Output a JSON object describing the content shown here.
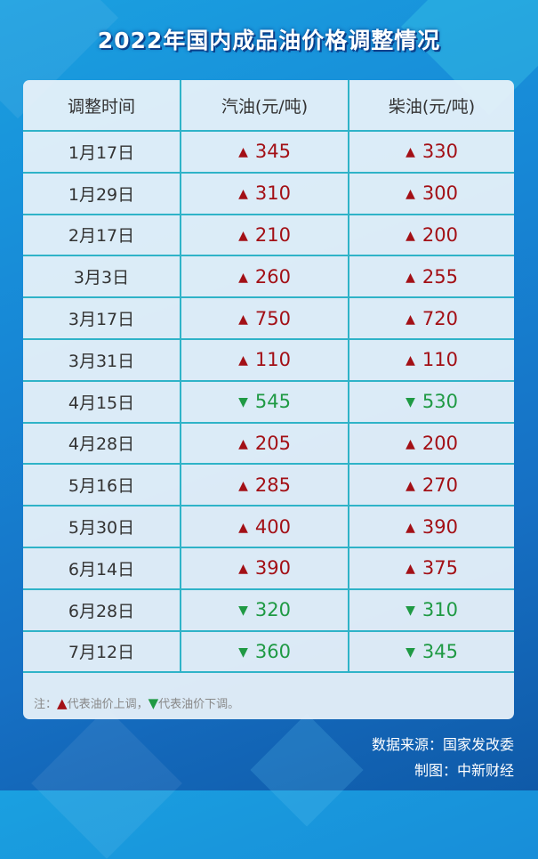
{
  "title": "2022年国内成品油价格调整情况",
  "table": {
    "headers": [
      "调整时间",
      "汽油(元/吨)",
      "柴油(元/吨)"
    ],
    "rows": [
      {
        "date": "1月17日",
        "gas_dir": "up",
        "gas": "345",
        "diesel_dir": "up",
        "diesel": "330"
      },
      {
        "date": "1月29日",
        "gas_dir": "up",
        "gas": "310",
        "diesel_dir": "up",
        "diesel": "300"
      },
      {
        "date": "2月17日",
        "gas_dir": "up",
        "gas": "210",
        "diesel_dir": "up",
        "diesel": "200"
      },
      {
        "date": "3月3日",
        "gas_dir": "up",
        "gas": "260",
        "diesel_dir": "up",
        "diesel": "255"
      },
      {
        "date": "3月17日",
        "gas_dir": "up",
        "gas": "750",
        "diesel_dir": "up",
        "diesel": "720"
      },
      {
        "date": "3月31日",
        "gas_dir": "up",
        "gas": "110",
        "diesel_dir": "up",
        "diesel": "110"
      },
      {
        "date": "4月15日",
        "gas_dir": "down",
        "gas": "545",
        "diesel_dir": "down",
        "diesel": "530"
      },
      {
        "date": "4月28日",
        "gas_dir": "up",
        "gas": "205",
        "diesel_dir": "up",
        "diesel": "200"
      },
      {
        "date": "5月16日",
        "gas_dir": "up",
        "gas": "285",
        "diesel_dir": "up",
        "diesel": "270"
      },
      {
        "date": "5月30日",
        "gas_dir": "up",
        "gas": "400",
        "diesel_dir": "up",
        "diesel": "390"
      },
      {
        "date": "6月14日",
        "gas_dir": "up",
        "gas": "390",
        "diesel_dir": "up",
        "diesel": "375"
      },
      {
        "date": "6月28日",
        "gas_dir": "down",
        "gas": "320",
        "diesel_dir": "down",
        "diesel": "310"
      },
      {
        "date": "7月12日",
        "gas_dir": "down",
        "gas": "360",
        "diesel_dir": "down",
        "diesel": "345"
      }
    ]
  },
  "note": {
    "prefix": "注：",
    "up_text": "代表油价上调，",
    "down_text": "代表油价下调。"
  },
  "source": "数据来源：国家发改委",
  "credit": "制图：中新财经",
  "colors": {
    "up": "#a31016",
    "down": "#1f9a44",
    "grid": "#2fb3c8"
  }
}
